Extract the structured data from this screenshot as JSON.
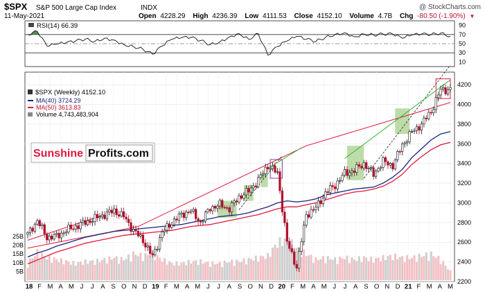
{
  "header": {
    "symbol": "$SPX",
    "name": "S&P 500 Large Cap Index",
    "exchange": "INDX",
    "watermark": "@ StockCharts.com",
    "date": "11-May-2021",
    "stats": [
      {
        "label": "Open",
        "value": "4228.29"
      },
      {
        "label": "High",
        "value": "4236.39"
      },
      {
        "label": "Low",
        "value": "4111.53"
      },
      {
        "label": "Close",
        "value": "4152.10"
      },
      {
        "label": "Volume",
        "value": "4.7B"
      },
      {
        "label": "Chg",
        "value": "-80.50 (-1.90%)"
      }
    ],
    "chg_arrow": "▼"
  },
  "rsi_panel": {
    "label": "RSI(14) 66.39"
  },
  "legend": {
    "price": "$SPX (Weekly) 4152.10",
    "ma40": "MA(40) 3724.29",
    "ma50": "MA(50) 3613.83",
    "volume": "Volume 4,743,483,904"
  },
  "brand": {
    "part1": "Sunshine",
    "part2": "Profits.com"
  },
  "colors": {
    "ma40": "#1a237e",
    "ma50": "#e0173e",
    "trend_red": "#e0173e",
    "trend_green": "#2eb82e",
    "box_fill": "#a8d08d",
    "box_purple": "#7b3fa0",
    "box_red": "#e0173e",
    "vol_up": "#f2b8bc",
    "vol_down": "#c9c9c9",
    "rsi_fill": "#3a7a3a",
    "brand_red": "#e0173e"
  },
  "chart_data": [
    {
      "type": "line",
      "title": "RSI(14)",
      "ylim": [
        0,
        100
      ],
      "yticks": [
        10,
        30,
        50,
        70,
        90
      ],
      "reference_lines": [
        30,
        50,
        70
      ],
      "x": [
        0,
        4,
        8,
        12,
        16,
        20,
        24,
        28,
        32,
        36,
        40,
        44,
        48,
        52,
        56,
        60,
        64,
        68,
        72,
        76,
        80,
        84,
        88,
        92,
        96,
        100,
        104,
        108,
        112,
        116,
        120,
        124,
        128,
        132,
        136,
        140,
        144,
        148,
        152,
        156,
        160,
        164,
        168,
        172,
        176
      ],
      "values": [
        70,
        77,
        45,
        49,
        52,
        56,
        60,
        55,
        62,
        58,
        48,
        44,
        38,
        27,
        45,
        60,
        63,
        64,
        57,
        48,
        54,
        65,
        72,
        60,
        72,
        25,
        44,
        56,
        66,
        60,
        55,
        64,
        70,
        74,
        65,
        71,
        69,
        71,
        71,
        62,
        69,
        71,
        70,
        73,
        66
      ]
    },
    {
      "type": "line",
      "title": "$SPX (Weekly)",
      "xlabel": "",
      "ylabel": "",
      "ylim": [
        2200,
        4300
      ],
      "yticks": [
        2200,
        2400,
        2600,
        2800,
        3000,
        3200,
        3400,
        3600,
        3800,
        4000,
        4200
      ],
      "x_ticks": [
        "18",
        "F",
        "M",
        "A",
        "M",
        "J",
        "J",
        "A",
        "S",
        "O",
        "N",
        "D",
        "19",
        "F",
        "M",
        "A",
        "M",
        "J",
        "J",
        "A",
        "S",
        "O",
        "N",
        "D",
        "20",
        "F",
        "M",
        "A",
        "M",
        "J",
        "J",
        "A",
        "S",
        "O",
        "N",
        "D",
        "21",
        "F",
        "M",
        "A",
        "M"
      ],
      "x": [
        0,
        4,
        8,
        12,
        16,
        20,
        24,
        28,
        32,
        36,
        40,
        44,
        48,
        52,
        56,
        60,
        64,
        68,
        72,
        76,
        80,
        84,
        88,
        92,
        96,
        100,
        104,
        108,
        112,
        116,
        120,
        124,
        128,
        132,
        136,
        140,
        144,
        148,
        152,
        156,
        160,
        164,
        168,
        172,
        176
      ],
      "series": [
        {
          "name": "$SPX",
          "values": [
            2680,
            2820,
            2650,
            2660,
            2720,
            2760,
            2800,
            2840,
            2880,
            2920,
            2860,
            2720,
            2620,
            2450,
            2700,
            2800,
            2880,
            2920,
            2800,
            2950,
            2980,
            2940,
            3060,
            3120,
            3230,
            3380,
            3300,
            2600,
            2350,
            2880,
            2950,
            3100,
            3180,
            3300,
            3330,
            3400,
            3290,
            3420,
            3380,
            3590,
            3720,
            3800,
            3930,
            4150,
            4152
          ]
        },
        {
          "name": "MA(40)",
          "values": [
            2450,
            2490,
            2520,
            2560,
            2590,
            2620,
            2650,
            2670,
            2690,
            2710,
            2720,
            2730,
            2740,
            2750,
            2760,
            2770,
            2780,
            2800,
            2820,
            2840,
            2860,
            2870,
            2880,
            2900,
            2930,
            2960,
            3000,
            3020,
            3010,
            3020,
            3040,
            3080,
            3100,
            3120,
            3140,
            3150,
            3160,
            3200,
            3260,
            3340,
            3460,
            3550,
            3640,
            3700,
            3724
          ]
        },
        {
          "name": "MA(50)",
          "values": [
            2380,
            2420,
            2460,
            2500,
            2530,
            2560,
            2590,
            2610,
            2630,
            2650,
            2670,
            2680,
            2690,
            2700,
            2710,
            2720,
            2740,
            2760,
            2770,
            2780,
            2800,
            2820,
            2840,
            2860,
            2880,
            2910,
            2940,
            2960,
            2960,
            2980,
            3000,
            3030,
            3060,
            3090,
            3110,
            3120,
            3140,
            3170,
            3220,
            3290,
            3390,
            3470,
            3540,
            3590,
            3614
          ]
        }
      ],
      "volume": {
        "yticks_labels": [
          "5B",
          "10B",
          "15B",
          "20B",
          "25B"
        ],
        "ylim_b": [
          0,
          27
        ],
        "values_b": [
          9,
          15,
          12,
          11,
          10,
          9,
          10,
          10,
          11,
          12,
          11,
          14,
          13,
          14,
          11,
          9,
          9,
          10,
          10,
          9,
          9,
          10,
          10,
          11,
          12,
          13,
          20,
          22,
          17,
          14,
          11,
          12,
          11,
          12,
          11,
          12,
          11,
          12,
          13,
          12,
          12,
          13,
          14,
          11,
          4.7
        ]
      },
      "annotations": [
        "SunshineProfits.com"
      ]
    }
  ]
}
